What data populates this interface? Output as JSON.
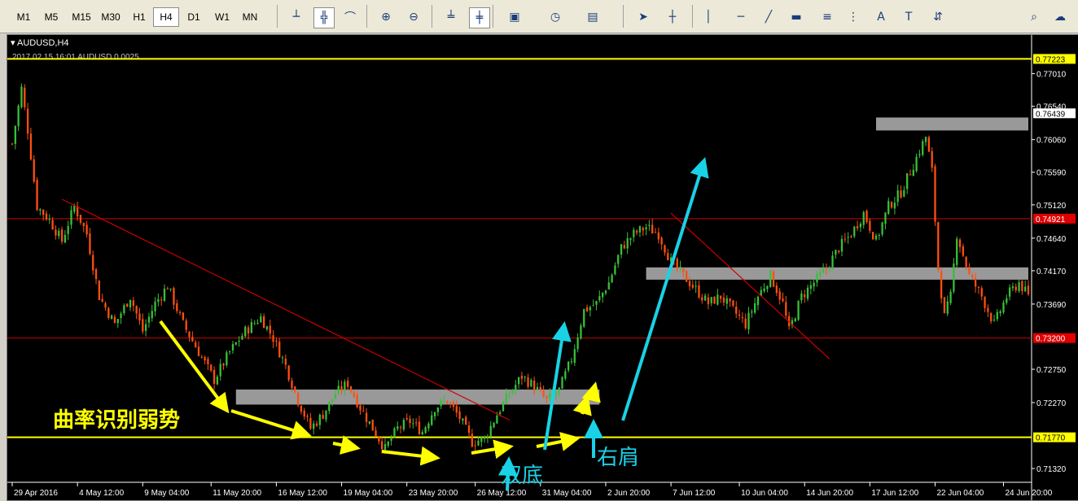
{
  "toolbar": {
    "timeframes": [
      "M1",
      "M5",
      "M15",
      "M30",
      "H1",
      "H4",
      "D1",
      "W1",
      "MN"
    ],
    "selected_timeframe": "H4",
    "tool_icons": [
      "bar-chart-icon",
      "candlestick-icon",
      "line-chart-icon",
      "zoom-in-icon",
      "zoom-out-icon",
      "chart-shift-icon",
      "autoscroll-icon",
      "indicators-icon",
      "periods-icon",
      "templates-icon",
      "cursor-icon",
      "crosshair-icon",
      "vertical-line-icon",
      "horizontal-line-icon",
      "trendline-icon",
      "rectangle-icon",
      "fibonacci-icon",
      "channel-icon",
      "text-icon",
      "text-label-icon",
      "arrows-icon",
      "search-icon",
      "chat-icon"
    ]
  },
  "chart": {
    "symbol_title": "AUDUSD,H4",
    "info_line": "2017.02.15 16:01 AUDUSD 0.0025",
    "colors": {
      "bull": "#38c038",
      "bear": "#ff4f0f",
      "bg": "#000000",
      "annotation_yellow": "#ffff00",
      "annotation_cyan": "#19d2e6",
      "gray_zone": "#999999",
      "red_line": "#cc0000"
    }
  },
  "annotations": {
    "weak_text": "曲率识别弱势",
    "double_bottom_text": "双底",
    "right_shoulder_text": "右肩"
  },
  "chart_data": {
    "type": "candlestick",
    "y_tick_labels": [
      "0.77010",
      "0.76540",
      "0.76060",
      "0.75590",
      "0.75120",
      "0.74640",
      "0.74170",
      "0.73690",
      "0.72750",
      "0.72270",
      "0.71320"
    ],
    "ylim": [
      0.7118,
      0.7731
    ],
    "x_tick_labels": [
      "29 Apr 2016",
      "4 May 12:00",
      "9 May 04:00",
      "11 May 20:00",
      "16 May 12:00",
      "19 May 04:00",
      "23 May 20:00",
      "26 May 12:00",
      "31 May 04:00",
      "2 Jun 20:00",
      "7 Jun 12:00",
      "10 Jun 04:00",
      "14 Jun 20:00",
      "17 Jun 12:00",
      "22 Jun 04:00",
      "24 Jun 20:00"
    ],
    "price_labels": [
      {
        "value": 0.77223,
        "text": "0.77223",
        "style": "yellow"
      },
      {
        "value": 0.76439,
        "text": "0.76439",
        "style": "white"
      },
      {
        "value": 0.74921,
        "text": "0.74921",
        "style": "red"
      },
      {
        "value": 0.732,
        "text": "0.73200",
        "style": "red"
      },
      {
        "value": 0.7177,
        "text": "0.71770",
        "style": "yellow"
      }
    ],
    "horizontal_lines": [
      {
        "value": 0.77223,
        "color": "yellow"
      },
      {
        "value": 0.74921,
        "color": "red"
      },
      {
        "value": 0.732,
        "color": "red"
      },
      {
        "value": 0.7177,
        "color": "yellow"
      }
    ],
    "close_path": [
      [
        0,
        0.76
      ],
      [
        3,
        0.768
      ],
      [
        5,
        0.762
      ],
      [
        8,
        0.751
      ],
      [
        12,
        0.749
      ],
      [
        16,
        0.746
      ],
      [
        20,
        0.751
      ],
      [
        24,
        0.747
      ],
      [
        28,
        0.738
      ],
      [
        33,
        0.734
      ],
      [
        38,
        0.738
      ],
      [
        42,
        0.733
      ],
      [
        46,
        0.737
      ],
      [
        50,
        0.7395
      ],
      [
        55,
        0.734
      ],
      [
        60,
        0.73
      ],
      [
        65,
        0.726
      ],
      [
        70,
        0.73
      ],
      [
        75,
        0.733
      ],
      [
        80,
        0.735
      ],
      [
        84,
        0.732
      ],
      [
        88,
        0.728
      ],
      [
        92,
        0.723
      ],
      [
        96,
        0.719
      ],
      [
        100,
        0.721
      ],
      [
        104,
        0.724
      ],
      [
        108,
        0.7255
      ],
      [
        112,
        0.722
      ],
      [
        116,
        0.719
      ],
      [
        120,
        0.716
      ],
      [
        124,
        0.719
      ],
      [
        128,
        0.72
      ],
      [
        132,
        0.7185
      ],
      [
        136,
        0.722
      ],
      [
        140,
        0.723
      ],
      [
        144,
        0.7205
      ],
      [
        148,
        0.717
      ],
      [
        152,
        0.7175
      ],
      [
        156,
        0.721
      ],
      [
        160,
        0.724
      ],
      [
        164,
        0.7265
      ],
      [
        168,
        0.725
      ],
      [
        172,
        0.723
      ],
      [
        176,
        0.7245
      ],
      [
        180,
        0.729
      ],
      [
        184,
        0.736
      ],
      [
        188,
        0.737
      ],
      [
        192,
        0.74
      ],
      [
        196,
        0.745
      ],
      [
        200,
        0.747
      ],
      [
        204,
        0.748
      ],
      [
        208,
        0.747
      ],
      [
        212,
        0.743
      ],
      [
        216,
        0.741
      ],
      [
        220,
        0.739
      ],
      [
        224,
        0.737
      ],
      [
        228,
        0.738
      ],
      [
        232,
        0.736
      ],
      [
        236,
        0.734
      ],
      [
        240,
        0.738
      ],
      [
        244,
        0.741
      ],
      [
        248,
        0.737
      ],
      [
        250,
        0.733
      ],
      [
        254,
        0.738
      ],
      [
        258,
        0.74
      ],
      [
        262,
        0.742
      ],
      [
        266,
        0.745
      ],
      [
        270,
        0.747
      ],
      [
        274,
        0.75
      ],
      [
        278,
        0.746
      ],
      [
        282,
        0.751
      ],
      [
        286,
        0.753
      ],
      [
        290,
        0.757
      ],
      [
        294,
        0.761
      ],
      [
        296,
        0.756
      ],
      [
        298,
        0.742
      ],
      [
        300,
        0.735
      ],
      [
        302,
        0.738
      ],
      [
        304,
        0.747
      ],
      [
        308,
        0.741
      ],
      [
        312,
        0.738
      ],
      [
        316,
        0.734
      ],
      [
        320,
        0.738
      ],
      [
        324,
        0.74
      ],
      [
        327,
        0.738
      ]
    ],
    "n_candles": 328,
    "gray_zones": [
      {
        "from": 0.724,
        "to": 0.723,
        "x0": 72,
        "x1": 189
      },
      {
        "from": 0.7416,
        "to": 0.741,
        "x0": 204,
        "x1": 327
      },
      {
        "from": 0.7632,
        "to": 0.7625,
        "x0": 278,
        "x1": 327
      }
    ],
    "trendlines": [
      {
        "x0": 16,
        "y0": 0.752,
        "x1": 160,
        "y1": 0.7202,
        "color": "red"
      },
      {
        "x0": 212,
        "y0": 0.75,
        "x1": 263,
        "y1": 0.729,
        "color": "red"
      }
    ]
  }
}
